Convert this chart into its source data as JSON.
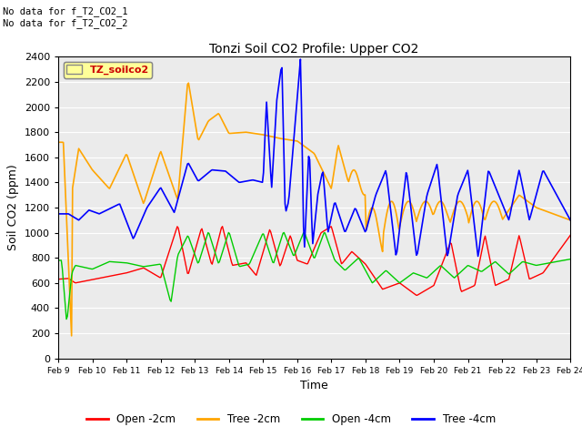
{
  "title": "Tonzi Soil CO2 Profile: Upper CO2",
  "xlabel": "Time",
  "ylabel": "Soil CO2 (ppm)",
  "ylim": [
    0,
    2400
  ],
  "yticks": [
    0,
    200,
    400,
    600,
    800,
    1000,
    1200,
    1400,
    1600,
    1800,
    2000,
    2200,
    2400
  ],
  "colors": {
    "open_2cm": "#ff0000",
    "tree_2cm": "#ffa500",
    "open_4cm": "#00cc00",
    "tree_4cm": "#0000ff"
  },
  "legend_labels": [
    "Open -2cm",
    "Tree -2cm",
    "Open -4cm",
    "Tree -4cm"
  ],
  "annotation_text": "No data for f_T2_CO2_1\nNo data for f_T2_CO2_2",
  "legend_box_label": "TZ_soilco2",
  "fig_facecolor": "#ffffff",
  "plot_facecolor": "#ebebeb",
  "grid_color": "#ffffff",
  "xtick_labels": [
    "Feb 9",
    "Feb 10",
    "Feb 11",
    "Feb 12",
    "Feb 13",
    "Feb 14",
    "Feb 15",
    "Feb 16",
    "Feb 17",
    "Feb 18",
    "Feb 19",
    "Feb 20",
    "Feb 21",
    "Feb 22",
    "Feb 23",
    "Feb 24"
  ]
}
